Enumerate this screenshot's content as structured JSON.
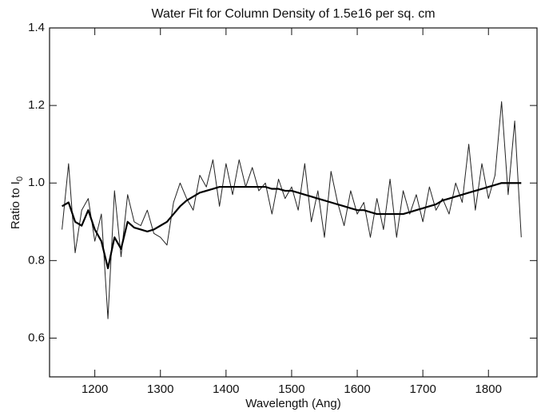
{
  "chart_data": {
    "type": "line",
    "title": "Water Fit for Column Density of 1.5e16 per sq. cm",
    "x_label": "Wavelength (Ang)",
    "y_label": "Ratio to I",
    "y_label_subscript": "0",
    "x": [
      1150,
      1160,
      1170,
      1180,
      1190,
      1200,
      1210,
      1220,
      1230,
      1240,
      1250,
      1260,
      1270,
      1280,
      1290,
      1300,
      1310,
      1320,
      1330,
      1340,
      1350,
      1360,
      1370,
      1380,
      1390,
      1400,
      1410,
      1420,
      1430,
      1440,
      1450,
      1460,
      1470,
      1480,
      1490,
      1500,
      1510,
      1520,
      1530,
      1540,
      1550,
      1560,
      1570,
      1580,
      1590,
      1600,
      1610,
      1620,
      1630,
      1640,
      1650,
      1660,
      1670,
      1680,
      1690,
      1700,
      1710,
      1720,
      1730,
      1740,
      1750,
      1760,
      1770,
      1780,
      1790,
      1800,
      1810,
      1820,
      1830,
      1840,
      1850
    ],
    "series": [
      {
        "color": "#222222",
        "values": [
          0.88,
          1.05,
          0.82,
          0.93,
          0.96,
          0.85,
          0.92,
          0.65,
          0.98,
          0.81,
          0.97,
          0.9,
          0.89,
          0.93,
          0.87,
          0.86,
          0.84,
          0.95,
          1.0,
          0.96,
          0.93,
          1.02,
          0.99,
          1.06,
          0.94,
          1.05,
          0.97,
          1.06,
          0.99,
          1.04,
          0.98,
          1.0,
          0.92,
          1.01,
          0.96,
          0.99,
          0.93,
          1.05,
          0.9,
          0.98,
          0.86,
          1.03,
          0.95,
          0.89,
          0.98,
          0.92,
          0.95,
          0.86,
          0.96,
          0.88,
          1.01,
          0.86,
          0.98,
          0.92,
          0.97,
          0.9,
          0.99,
          0.93,
          0.96,
          0.92,
          1.0,
          0.95,
          1.1,
          0.93,
          1.05,
          0.96,
          1.02,
          1.21,
          0.97,
          1.16,
          0.86
        ]
      },
      {
        "color": "#000000",
        "values": [
          0.94,
          0.95,
          0.9,
          0.89,
          0.93,
          0.88,
          0.85,
          0.78,
          0.86,
          0.83,
          0.9,
          0.885,
          0.88,
          0.875,
          0.88,
          0.89,
          0.9,
          0.92,
          0.94,
          0.955,
          0.965,
          0.975,
          0.98,
          0.985,
          0.99,
          0.99,
          0.99,
          0.99,
          0.99,
          0.99,
          0.99,
          0.99,
          0.985,
          0.985,
          0.98,
          0.98,
          0.975,
          0.97,
          0.965,
          0.96,
          0.955,
          0.95,
          0.945,
          0.94,
          0.935,
          0.93,
          0.93,
          0.925,
          0.92,
          0.92,
          0.92,
          0.92,
          0.92,
          0.925,
          0.93,
          0.935,
          0.94,
          0.945,
          0.955,
          0.96,
          0.965,
          0.97,
          0.975,
          0.98,
          0.985,
          0.99,
          0.995,
          1.0,
          1.0,
          1.0,
          1.0
        ]
      }
    ],
    "xlim": [
      1131,
      1874
    ],
    "ylim": [
      0.5,
      1.4
    ],
    "xticks": [
      1200,
      1300,
      1400,
      1500,
      1600,
      1700,
      1800
    ],
    "yticks": [
      0.6,
      0.8,
      {
        "value": 1,
        "label": "1.0"
      },
      1.2,
      1.4
    ],
    "grid": false
  }
}
